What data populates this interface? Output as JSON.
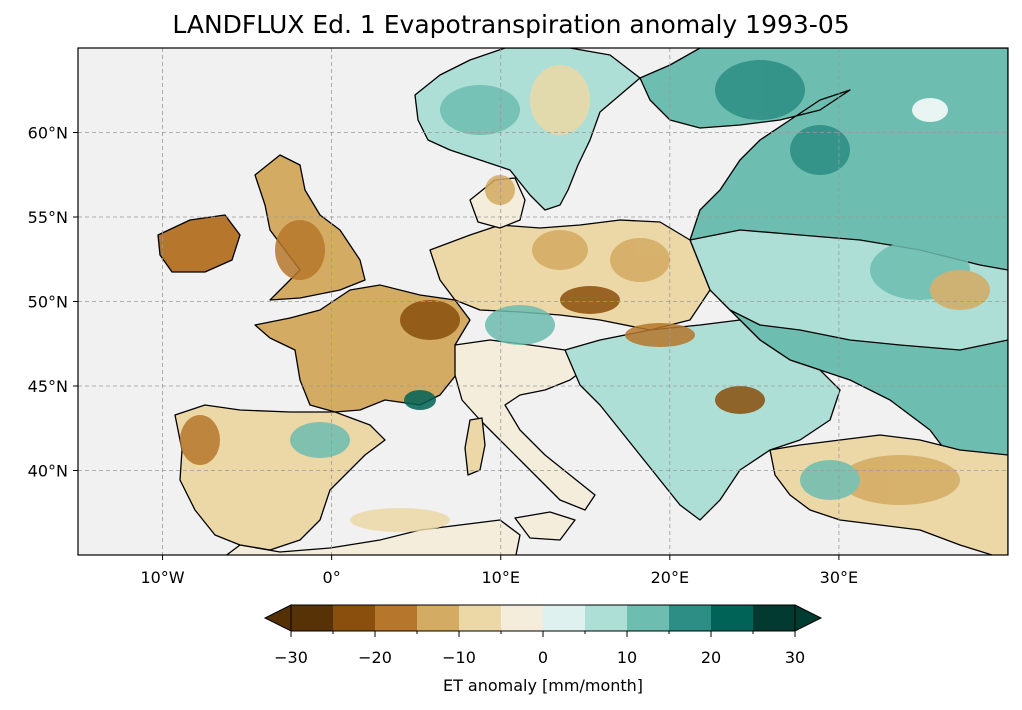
{
  "title": "LANDFLUX Ed. 1 Evapotranspiration anomaly 1993-05",
  "map": {
    "extent": {
      "lon": [
        -15,
        40
      ],
      "lat": [
        35,
        65
      ]
    },
    "background_color": "#f1f1f1",
    "grid": "dashed",
    "lon_ticks": [
      {
        "lon": -10,
        "label": "10°W"
      },
      {
        "lon": 0,
        "label": "0°"
      },
      {
        "lon": 10,
        "label": "10°E"
      },
      {
        "lon": 20,
        "label": "20°E"
      },
      {
        "lon": 30,
        "label": "30°E"
      }
    ],
    "lat_ticks": [
      {
        "lat": 60,
        "label": "60°N"
      },
      {
        "lat": 55,
        "label": "55°N"
      },
      {
        "lat": 50,
        "label": "50°N"
      },
      {
        "lat": 45,
        "label": "45°N"
      },
      {
        "lat": 40,
        "label": "40°N"
      }
    ]
  },
  "colorbar": {
    "label": "ET anomaly [mm/month]",
    "min": -30,
    "max": 30,
    "extend": "both",
    "colors": [
      "#543005",
      "#8c510a",
      "#bf812d",
      "#dfc27d",
      "#f6e8c3",
      "#f5f5f5",
      "#c7eae5",
      "#80cdc1",
      "#35978f",
      "#01665e",
      "#003c30"
    ],
    "bins": [
      "#583207",
      "#8a4f0d",
      "#b6772c",
      "#d4ab62",
      "#ecd8a6",
      "#f4eddb",
      "#dff1ee",
      "#aedfd6",
      "#6dbdb0",
      "#2c8e84",
      "#006357",
      "#023a31"
    ],
    "ticks": [
      {
        "value": -30,
        "label": "−30"
      },
      {
        "value": -20,
        "label": "−20"
      },
      {
        "value": -10,
        "label": "−10"
      },
      {
        "value": 0,
        "label": "0"
      },
      {
        "value": 10,
        "label": "10"
      },
      {
        "value": 20,
        "label": "20"
      },
      {
        "value": 30,
        "label": "30"
      }
    ]
  }
}
